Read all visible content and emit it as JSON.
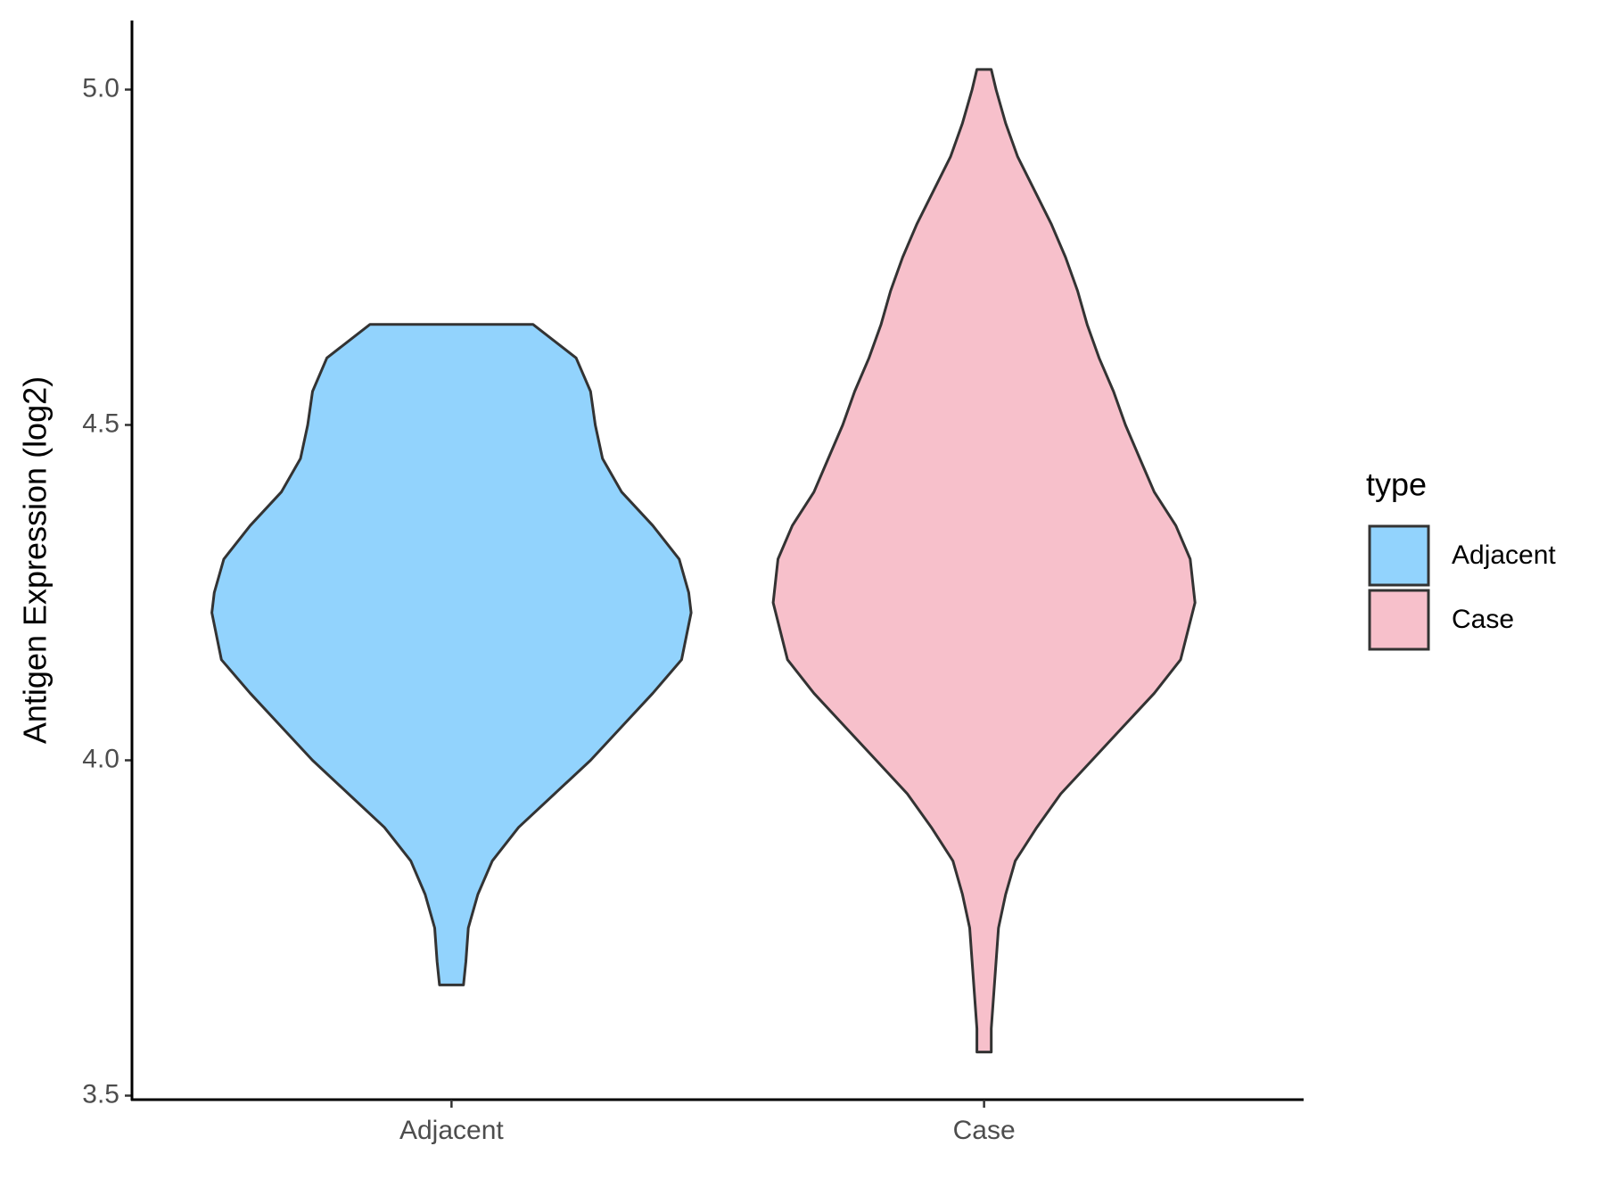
{
  "chart_data": {
    "type": "violin",
    "y_label": "Antigen Expression (log2)",
    "categories": [
      "Adjacent",
      "Case"
    ],
    "legend_title": "type",
    "legend_position": "right",
    "series": [
      {
        "name": "Adjacent",
        "color": "#92d3fd",
        "y": [
          4.65,
          4.6,
          4.55,
          4.5,
          4.45,
          4.4,
          4.35,
          4.3,
          4.25,
          4.22,
          4.15,
          4.1,
          4.05,
          4.0,
          3.95,
          3.9,
          3.85,
          3.8,
          3.75,
          3.7,
          3.665
        ],
        "density": [
          0.34,
          0.52,
          0.58,
          0.6,
          0.63,
          0.71,
          0.84,
          0.95,
          0.99,
          1.0,
          0.96,
          0.84,
          0.71,
          0.58,
          0.43,
          0.28,
          0.17,
          0.11,
          0.07,
          0.06,
          0.05
        ]
      },
      {
        "name": "Case",
        "color": "#f7c0cb",
        "y": [
          5.03,
          5.0,
          4.95,
          4.9,
          4.85,
          4.8,
          4.75,
          4.7,
          4.65,
          4.6,
          4.55,
          4.5,
          4.45,
          4.4,
          4.35,
          4.3,
          4.235,
          4.15,
          4.1,
          4.05,
          4.0,
          3.95,
          3.9,
          3.85,
          3.8,
          3.75,
          3.7,
          3.65,
          3.6,
          3.565
        ],
        "density": [
          0.03,
          0.05,
          0.09,
          0.14,
          0.21,
          0.28,
          0.34,
          0.39,
          0.43,
          0.48,
          0.54,
          0.59,
          0.65,
          0.71,
          0.8,
          0.86,
          0.88,
          0.82,
          0.71,
          0.58,
          0.45,
          0.32,
          0.22,
          0.13,
          0.09,
          0.06,
          0.05,
          0.04,
          0.03,
          0.03
        ]
      }
    ],
    "ylim": [
      3.494,
      5.103
    ],
    "yticks": [
      {
        "value": 3.5,
        "label": "3.5"
      },
      {
        "value": 4,
        "label": "4.0"
      },
      {
        "value": 4.5,
        "label": "4.5"
      },
      {
        "value": 5,
        "label": "5.0"
      }
    ]
  }
}
